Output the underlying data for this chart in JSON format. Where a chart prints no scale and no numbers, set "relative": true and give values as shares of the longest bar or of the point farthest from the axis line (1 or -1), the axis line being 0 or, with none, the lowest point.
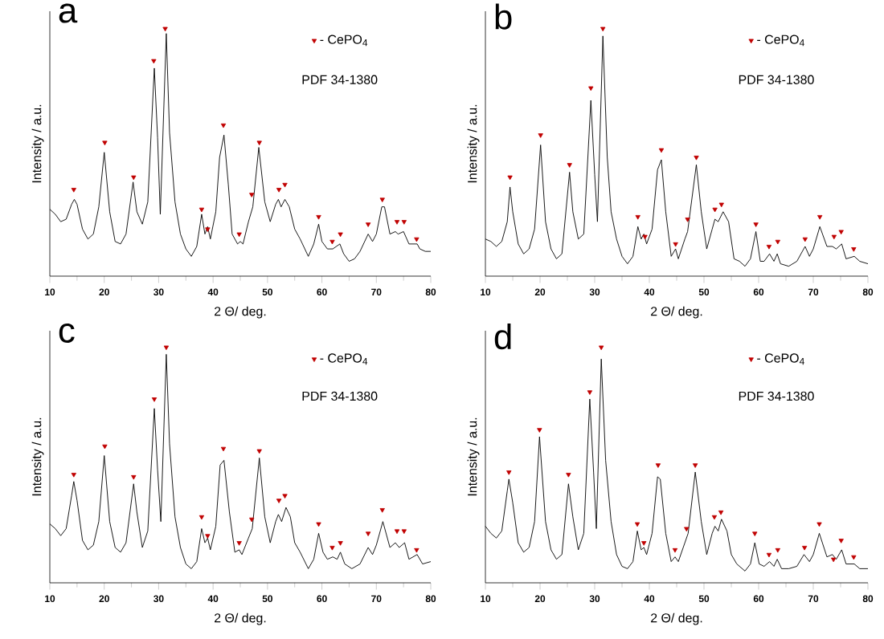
{
  "chart_data": [
    {
      "type": "line",
      "title": "a",
      "xlabel": "2 Θ/ deg.",
      "ylabel": "Intensity / a.u.",
      "xlim": [
        10,
        80
      ],
      "xticks": [
        10,
        20,
        30,
        40,
        50,
        60,
        70,
        80
      ],
      "tick_labels": "x",
      "relative": true,
      "legend": "top right",
      "annotations": [
        "PDF 34-1380"
      ],
      "series": [
        {
          "color": "#000000",
          "x": [
            10,
            11,
            12,
            13,
            14,
            14.5,
            15,
            16,
            17,
            18,
            19,
            20,
            21,
            22,
            23,
            24,
            25.3,
            26,
            27,
            28,
            29.2,
            29.8,
            30.3,
            31.4,
            32,
            33,
            34,
            35,
            36,
            37,
            37.9,
            38.5,
            39,
            39.5,
            40.5,
            41.2,
            42,
            42.8,
            43.5,
            44.5,
            45,
            45.5,
            46.5,
            47.3,
            48.4,
            49.5,
            50.5,
            51.5,
            52,
            52.5,
            53.2,
            54,
            55,
            56,
            57.5,
            58.5,
            59.4,
            60,
            61,
            62,
            63.3,
            64,
            65,
            66,
            67,
            68.5,
            69.3,
            70,
            71,
            71.5,
            72.5,
            73.5,
            74,
            75,
            76,
            77.5,
            78,
            79,
            80
          ],
          "values": [
            0.27,
            0.25,
            0.22,
            0.23,
            0.29,
            0.31,
            0.29,
            0.19,
            0.15,
            0.17,
            0.28,
            0.5,
            0.26,
            0.14,
            0.13,
            0.17,
            0.38,
            0.26,
            0.21,
            0.3,
            0.84,
            0.56,
            0.25,
            0.98,
            0.58,
            0.3,
            0.17,
            0.11,
            0.08,
            0.12,
            0.25,
            0.17,
            0.2,
            0.15,
            0.26,
            0.48,
            0.57,
            0.37,
            0.17,
            0.13,
            0.14,
            0.13,
            0.22,
            0.28,
            0.52,
            0.3,
            0.22,
            0.29,
            0.31,
            0.28,
            0.31,
            0.28,
            0.19,
            0.15,
            0.08,
            0.13,
            0.21,
            0.14,
            0.11,
            0.11,
            0.13,
            0.09,
            0.06,
            0.07,
            0.1,
            0.17,
            0.14,
            0.17,
            0.28,
            0.28,
            0.17,
            0.18,
            0.17,
            0.18,
            0.13,
            0.13,
            0.11,
            0.1,
            0.1
          ]
        },
        {
          "type": "scatter",
          "name": "- CePO$_{4}$",
          "color": "#c00000",
          "marker": "triangle",
          "x": [
            14.4,
            20.1,
            25.4,
            29.1,
            31.2,
            37.9,
            39.0,
            41.9,
            44.8,
            47.1,
            48.5,
            52.1,
            53.2,
            59.4,
            61.9,
            63.4,
            68.5,
            71.1,
            73.8,
            75.1,
            77.4
          ],
          "values": [
            0.35,
            0.54,
            0.4,
            0.87,
            1,
            0.27,
            0.19,
            0.61,
            0.17,
            0.33,
            0.54,
            0.35,
            0.37,
            0.24,
            0.14,
            0.17,
            0.21,
            0.31,
            0.22,
            0.22,
            0.15
          ]
        }
      ]
    },
    {
      "type": "line",
      "title": "b",
      "xlabel": "2 Θ/ deg.",
      "ylabel": "Intensity / a.u.",
      "xlim": [
        10,
        80
      ],
      "xticks": [
        10,
        20,
        30,
        40,
        50,
        60,
        70,
        80
      ],
      "tick_labels": "x",
      "relative": true,
      "legend": "top right",
      "annotations": [
        "PDF 34-1380"
      ],
      "series": [
        {
          "color": "#000000",
          "x": [
            10,
            11,
            12,
            13,
            14,
            14.5,
            15,
            16,
            17,
            18,
            19,
            20.1,
            21,
            22,
            23,
            24,
            25.4,
            26,
            27,
            28,
            29.3,
            30,
            30.5,
            31.5,
            32.3,
            33,
            34,
            35,
            36,
            37,
            37.9,
            38.5,
            39,
            39.5,
            40.5,
            41.5,
            42.2,
            43,
            44,
            44.8,
            45.3,
            46.5,
            47,
            48.6,
            49.5,
            50.5,
            51.5,
            52,
            52.6,
            53.5,
            54.5,
            55.5,
            56.5,
            57.5,
            58.5,
            59.5,
            60.3,
            61,
            62,
            62.8,
            63.4,
            64,
            65.5,
            67,
            68.5,
            69.3,
            70,
            71.2,
            72.5,
            73.5,
            74.2,
            75.2,
            76,
            77.5,
            78.5,
            80
          ],
          "values": [
            0.15,
            0.14,
            0.12,
            0.14,
            0.22,
            0.36,
            0.26,
            0.13,
            0.09,
            0.11,
            0.19,
            0.53,
            0.22,
            0.11,
            0.07,
            0.09,
            0.42,
            0.26,
            0.15,
            0.17,
            0.71,
            0.41,
            0.22,
            0.97,
            0.48,
            0.26,
            0.15,
            0.08,
            0.05,
            0.08,
            0.2,
            0.15,
            0.17,
            0.13,
            0.19,
            0.43,
            0.47,
            0.26,
            0.08,
            0.11,
            0.07,
            0.15,
            0.18,
            0.45,
            0.26,
            0.11,
            0.19,
            0.23,
            0.22,
            0.26,
            0.22,
            0.07,
            0.06,
            0.04,
            0.07,
            0.18,
            0.06,
            0.06,
            0.09,
            0.06,
            0.09,
            0.05,
            0.04,
            0.06,
            0.12,
            0.08,
            0.11,
            0.2,
            0.12,
            0.12,
            0.11,
            0.13,
            0.07,
            0.08,
            0.06,
            0.05
          ]
        },
        {
          "type": "scatter",
          "name": "- CePO$_{4}$",
          "color": "#c00000",
          "marker": "triangle",
          "x": [
            14.5,
            20.1,
            25.4,
            29.3,
            31.5,
            37.9,
            39.2,
            42.2,
            44.8,
            47.0,
            48.6,
            52.0,
            53.2,
            59.5,
            61.9,
            63.5,
            68.5,
            71.2,
            73.8,
            75.1,
            77.4
          ],
          "values": [
            0.4,
            0.57,
            0.45,
            0.76,
            1,
            0.24,
            0.16,
            0.51,
            0.13,
            0.23,
            0.48,
            0.27,
            0.29,
            0.21,
            0.12,
            0.14,
            0.15,
            0.24,
            0.16,
            0.18,
            0.11
          ]
        }
      ]
    },
    {
      "type": "line",
      "title": "c",
      "xlabel": "2 Θ/ deg.",
      "ylabel": "Intensity / a.u.",
      "xlim": [
        10,
        80
      ],
      "xticks": [
        10,
        20,
        30,
        40,
        50,
        60,
        70,
        80
      ],
      "tick_labels": "x",
      "relative": true,
      "legend": "top right",
      "annotations": [
        "PDF 34-1380"
      ],
      "series": [
        {
          "color": "#000000",
          "x": [
            10,
            11,
            12,
            13,
            14,
            14.4,
            15,
            16,
            17,
            18,
            19,
            20,
            21,
            22,
            23,
            24,
            25.4,
            26,
            27,
            28,
            29.2,
            29.8,
            30.4,
            31.4,
            32,
            33,
            34,
            35,
            36,
            37,
            37.9,
            38.5,
            39,
            39.5,
            40.5,
            41.3,
            42,
            43,
            44,
            44.8,
            45.3,
            46.5,
            47.2,
            48.5,
            49.5,
            50.5,
            51.5,
            52,
            52.6,
            53.4,
            54.2,
            55,
            56,
            57.5,
            58.5,
            59.4,
            60.2,
            61,
            62,
            62.8,
            63.4,
            64.2,
            65.5,
            67,
            68.5,
            69.3,
            70,
            71.2,
            72.5,
            73.5,
            74.2,
            75.2,
            76,
            77.5,
            78.5,
            80
          ],
          "values": [
            0.25,
            0.23,
            0.2,
            0.23,
            0.37,
            0.43,
            0.35,
            0.18,
            0.14,
            0.16,
            0.26,
            0.54,
            0.26,
            0.15,
            0.13,
            0.17,
            0.42,
            0.3,
            0.15,
            0.22,
            0.74,
            0.48,
            0.26,
            0.97,
            0.59,
            0.28,
            0.15,
            0.08,
            0.06,
            0.09,
            0.23,
            0.17,
            0.19,
            0.14,
            0.24,
            0.5,
            0.52,
            0.3,
            0.13,
            0.14,
            0.12,
            0.19,
            0.23,
            0.53,
            0.28,
            0.17,
            0.26,
            0.29,
            0.26,
            0.32,
            0.28,
            0.17,
            0.13,
            0.06,
            0.1,
            0.21,
            0.13,
            0.1,
            0.11,
            0.1,
            0.13,
            0.08,
            0.06,
            0.08,
            0.15,
            0.12,
            0.16,
            0.26,
            0.15,
            0.17,
            0.15,
            0.17,
            0.1,
            0.12,
            0.08,
            0.09
          ]
        },
        {
          "type": "scatter",
          "name": "- CePO$_{4}$",
          "color": "#c00000",
          "marker": "triangle",
          "x": [
            14.4,
            20.1,
            25.4,
            29.2,
            31.4,
            37.9,
            39.0,
            41.9,
            44.8,
            47.1,
            48.5,
            52.1,
            53.2,
            59.4,
            61.9,
            63.4,
            68.5,
            71.1,
            73.8,
            75.1,
            77.4
          ],
          "values": [
            0.46,
            0.58,
            0.45,
            0.78,
            1,
            0.28,
            0.2,
            0.57,
            0.17,
            0.27,
            0.56,
            0.35,
            0.37,
            0.25,
            0.15,
            0.17,
            0.21,
            0.31,
            0.22,
            0.22,
            0.14
          ]
        }
      ]
    },
    {
      "type": "line",
      "title": "d",
      "xlabel": "2 Θ/ deg.",
      "ylabel": "Intensity / a.u.",
      "xlim": [
        10,
        80
      ],
      "xticks": [
        10,
        20,
        30,
        40,
        50,
        60,
        70,
        80
      ],
      "tick_labels": "x",
      "relative": true,
      "legend": "top right",
      "annotations": [
        "PDF 34-1380"
      ],
      "series": [
        {
          "color": "#000000",
          "x": [
            10,
            11,
            12,
            13,
            14,
            14.3,
            15,
            16,
            17,
            18,
            19,
            19.9,
            21,
            22,
            23,
            24,
            25.2,
            26,
            27,
            28,
            29.1,
            29.8,
            30.3,
            31.2,
            32,
            33,
            34,
            35,
            36,
            37,
            37.8,
            38.5,
            39,
            39.5,
            40.5,
            41.5,
            42,
            43,
            44,
            44.7,
            45.3,
            46.5,
            47.1,
            48.4,
            49.5,
            50.5,
            51.5,
            52,
            52.6,
            53.2,
            54.2,
            55,
            56,
            57.5,
            58.5,
            59.3,
            60.1,
            61,
            62,
            62.8,
            63.4,
            64.2,
            65.5,
            67,
            68.3,
            69.3,
            70,
            71.1,
            72.5,
            73.5,
            74.2,
            75.2,
            76,
            77.5,
            78.5,
            80
          ],
          "values": [
            0.24,
            0.21,
            0.19,
            0.22,
            0.39,
            0.44,
            0.34,
            0.17,
            0.13,
            0.15,
            0.26,
            0.62,
            0.26,
            0.14,
            0.1,
            0.12,
            0.42,
            0.28,
            0.14,
            0.21,
            0.78,
            0.47,
            0.23,
            0.95,
            0.52,
            0.26,
            0.12,
            0.07,
            0.06,
            0.09,
            0.22,
            0.14,
            0.15,
            0.12,
            0.21,
            0.45,
            0.44,
            0.21,
            0.09,
            0.11,
            0.09,
            0.17,
            0.21,
            0.47,
            0.26,
            0.12,
            0.21,
            0.24,
            0.22,
            0.27,
            0.22,
            0.12,
            0.08,
            0.05,
            0.08,
            0.17,
            0.08,
            0.07,
            0.09,
            0.07,
            0.1,
            0.06,
            0.06,
            0.07,
            0.12,
            0.09,
            0.12,
            0.21,
            0.11,
            0.12,
            0.1,
            0.14,
            0.08,
            0.08,
            0.06,
            0.06
          ]
        },
        {
          "type": "scatter",
          "name": "- CePO$_{4}$",
          "color": "#c00000",
          "marker": "triangle",
          "x": [
            14.3,
            19.9,
            25.2,
            29.1,
            31.2,
            37.8,
            39.0,
            41.6,
            44.7,
            46.8,
            48.4,
            51.9,
            53.1,
            59.3,
            61.9,
            63.5,
            68.4,
            71.1,
            73.7,
            75.1,
            77.4
          ],
          "values": [
            0.47,
            0.65,
            0.46,
            0.81,
            1,
            0.25,
            0.17,
            0.5,
            0.14,
            0.23,
            0.5,
            0.28,
            0.3,
            0.21,
            0.12,
            0.14,
            0.15,
            0.25,
            0.1,
            0.18,
            0.11
          ]
        }
      ]
    }
  ]
}
